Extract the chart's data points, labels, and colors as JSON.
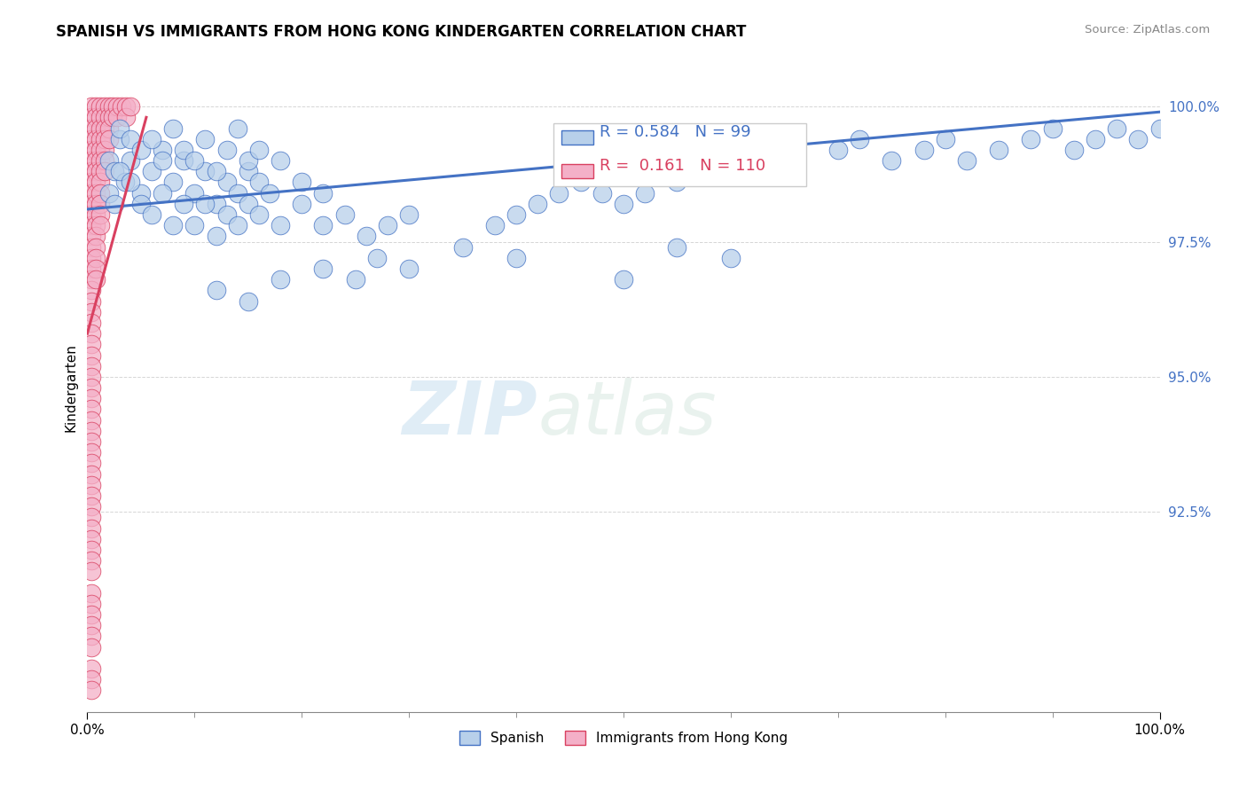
{
  "title": "SPANISH VS IMMIGRANTS FROM HONG KONG KINDERGARTEN CORRELATION CHART",
  "source_text": "Source: ZipAtlas.com",
  "ylabel": "Kindergarten",
  "x_min": 0.0,
  "x_max": 1.0,
  "y_min": 0.888,
  "y_max": 1.008,
  "x_tick_labels": [
    "0.0%",
    "100.0%"
  ],
  "x_ticks": [
    0.0,
    1.0
  ],
  "y_tick_labels": [
    "92.5%",
    "95.0%",
    "97.5%",
    "100.0%"
  ],
  "y_ticks": [
    0.925,
    0.95,
    0.975,
    1.0
  ],
  "legend_labels": [
    "Spanish",
    "Immigrants from Hong Kong"
  ],
  "blue_color": "#b8d0ea",
  "pink_color": "#f4b0c8",
  "blue_line_color": "#4472c4",
  "pink_line_color": "#d94060",
  "blue_R": 0.584,
  "blue_N": 99,
  "pink_R": 0.161,
  "pink_N": 110,
  "watermark_zip": "ZIP",
  "watermark_atlas": "atlas",
  "blue_trendline_x": [
    0.0,
    1.0
  ],
  "blue_trendline_y": [
    0.981,
    0.999
  ],
  "pink_trendline_x": [
    0.0,
    0.055
  ],
  "pink_trendline_y": [
    0.958,
    0.998
  ],
  "blue_scatter": [
    [
      0.02,
      0.99
    ],
    [
      0.025,
      0.988
    ],
    [
      0.03,
      0.994
    ],
    [
      0.035,
      0.986
    ],
    [
      0.04,
      0.99
    ],
    [
      0.05,
      0.984
    ],
    [
      0.06,
      0.988
    ],
    [
      0.07,
      0.992
    ],
    [
      0.08,
      0.986
    ],
    [
      0.09,
      0.99
    ],
    [
      0.1,
      0.984
    ],
    [
      0.11,
      0.988
    ],
    [
      0.12,
      0.982
    ],
    [
      0.13,
      0.986
    ],
    [
      0.14,
      0.984
    ],
    [
      0.15,
      0.988
    ],
    [
      0.16,
      0.986
    ],
    [
      0.17,
      0.984
    ],
    [
      0.18,
      0.99
    ],
    [
      0.2,
      0.986
    ],
    [
      0.22,
      0.984
    ],
    [
      0.03,
      0.996
    ],
    [
      0.04,
      0.994
    ],
    [
      0.05,
      0.992
    ],
    [
      0.06,
      0.994
    ],
    [
      0.07,
      0.99
    ],
    [
      0.08,
      0.996
    ],
    [
      0.09,
      0.992
    ],
    [
      0.1,
      0.99
    ],
    [
      0.11,
      0.994
    ],
    [
      0.12,
      0.988
    ],
    [
      0.13,
      0.992
    ],
    [
      0.14,
      0.996
    ],
    [
      0.15,
      0.99
    ],
    [
      0.16,
      0.992
    ],
    [
      0.02,
      0.984
    ],
    [
      0.025,
      0.982
    ],
    [
      0.03,
      0.988
    ],
    [
      0.04,
      0.986
    ],
    [
      0.05,
      0.982
    ],
    [
      0.06,
      0.98
    ],
    [
      0.07,
      0.984
    ],
    [
      0.08,
      0.978
    ],
    [
      0.09,
      0.982
    ],
    [
      0.1,
      0.978
    ],
    [
      0.11,
      0.982
    ],
    [
      0.12,
      0.976
    ],
    [
      0.13,
      0.98
    ],
    [
      0.14,
      0.978
    ],
    [
      0.15,
      0.982
    ],
    [
      0.16,
      0.98
    ],
    [
      0.18,
      0.978
    ],
    [
      0.2,
      0.982
    ],
    [
      0.22,
      0.978
    ],
    [
      0.24,
      0.98
    ],
    [
      0.26,
      0.976
    ],
    [
      0.28,
      0.978
    ],
    [
      0.3,
      0.98
    ],
    [
      0.38,
      0.978
    ],
    [
      0.4,
      0.98
    ],
    [
      0.42,
      0.982
    ],
    [
      0.44,
      0.984
    ],
    [
      0.46,
      0.986
    ],
    [
      0.48,
      0.984
    ],
    [
      0.5,
      0.982
    ],
    [
      0.52,
      0.984
    ],
    [
      0.55,
      0.986
    ],
    [
      0.6,
      0.988
    ],
    [
      0.65,
      0.99
    ],
    [
      0.7,
      0.992
    ],
    [
      0.72,
      0.994
    ],
    [
      0.75,
      0.99
    ],
    [
      0.78,
      0.992
    ],
    [
      0.8,
      0.994
    ],
    [
      0.82,
      0.99
    ],
    [
      0.85,
      0.992
    ],
    [
      0.88,
      0.994
    ],
    [
      0.9,
      0.996
    ],
    [
      0.92,
      0.992
    ],
    [
      0.94,
      0.994
    ],
    [
      0.96,
      0.996
    ],
    [
      0.98,
      0.994
    ],
    [
      1.0,
      0.996
    ],
    [
      0.55,
      0.974
    ],
    [
      0.6,
      0.972
    ],
    [
      0.27,
      0.972
    ],
    [
      0.3,
      0.97
    ],
    [
      0.12,
      0.966
    ],
    [
      0.15,
      0.964
    ],
    [
      0.18,
      0.968
    ],
    [
      0.22,
      0.97
    ],
    [
      0.25,
      0.968
    ],
    [
      0.35,
      0.974
    ],
    [
      0.4,
      0.972
    ],
    [
      0.5,
      0.968
    ]
  ],
  "pink_scatter": [
    [
      0.004,
      1.0
    ],
    [
      0.004,
      0.998
    ],
    [
      0.004,
      0.996
    ],
    [
      0.004,
      0.994
    ],
    [
      0.004,
      0.992
    ],
    [
      0.004,
      0.99
    ],
    [
      0.004,
      0.988
    ],
    [
      0.004,
      0.986
    ],
    [
      0.004,
      0.984
    ],
    [
      0.004,
      0.982
    ],
    [
      0.004,
      0.98
    ],
    [
      0.004,
      0.978
    ],
    [
      0.004,
      0.976
    ],
    [
      0.004,
      0.974
    ],
    [
      0.004,
      0.972
    ],
    [
      0.004,
      0.97
    ],
    [
      0.004,
      0.968
    ],
    [
      0.004,
      0.966
    ],
    [
      0.004,
      0.964
    ],
    [
      0.004,
      0.962
    ],
    [
      0.004,
      0.96
    ],
    [
      0.004,
      0.958
    ],
    [
      0.004,
      0.956
    ],
    [
      0.004,
      0.954
    ],
    [
      0.004,
      0.952
    ],
    [
      0.004,
      0.95
    ],
    [
      0.004,
      0.948
    ],
    [
      0.004,
      0.946
    ],
    [
      0.004,
      0.944
    ],
    [
      0.004,
      0.942
    ],
    [
      0.004,
      0.94
    ],
    [
      0.004,
      0.938
    ],
    [
      0.004,
      0.936
    ],
    [
      0.004,
      0.934
    ],
    [
      0.008,
      1.0
    ],
    [
      0.008,
      0.998
    ],
    [
      0.008,
      0.996
    ],
    [
      0.008,
      0.994
    ],
    [
      0.008,
      0.992
    ],
    [
      0.008,
      0.99
    ],
    [
      0.008,
      0.988
    ],
    [
      0.008,
      0.986
    ],
    [
      0.008,
      0.984
    ],
    [
      0.008,
      0.982
    ],
    [
      0.008,
      0.98
    ],
    [
      0.008,
      0.978
    ],
    [
      0.008,
      0.976
    ],
    [
      0.008,
      0.974
    ],
    [
      0.012,
      1.0
    ],
    [
      0.012,
      0.998
    ],
    [
      0.012,
      0.996
    ],
    [
      0.012,
      0.994
    ],
    [
      0.012,
      0.992
    ],
    [
      0.012,
      0.99
    ],
    [
      0.012,
      0.988
    ],
    [
      0.012,
      0.986
    ],
    [
      0.012,
      0.984
    ],
    [
      0.012,
      0.982
    ],
    [
      0.016,
      1.0
    ],
    [
      0.016,
      0.998
    ],
    [
      0.016,
      0.996
    ],
    [
      0.016,
      0.994
    ],
    [
      0.016,
      0.992
    ],
    [
      0.016,
      0.99
    ],
    [
      0.02,
      1.0
    ],
    [
      0.02,
      0.998
    ],
    [
      0.02,
      0.996
    ],
    [
      0.02,
      0.994
    ],
    [
      0.024,
      1.0
    ],
    [
      0.024,
      0.998
    ],
    [
      0.028,
      1.0
    ],
    [
      0.028,
      0.998
    ],
    [
      0.032,
      1.0
    ],
    [
      0.036,
      1.0
    ],
    [
      0.036,
      0.998
    ],
    [
      0.04,
      1.0
    ],
    [
      0.004,
      0.932
    ],
    [
      0.004,
      0.93
    ],
    [
      0.004,
      0.928
    ],
    [
      0.004,
      0.926
    ],
    [
      0.004,
      0.924
    ],
    [
      0.004,
      0.922
    ],
    [
      0.004,
      0.92
    ],
    [
      0.004,
      0.918
    ],
    [
      0.004,
      0.916
    ],
    [
      0.004,
      0.914
    ],
    [
      0.004,
      0.91
    ],
    [
      0.004,
      0.908
    ],
    [
      0.004,
      0.906
    ],
    [
      0.004,
      0.904
    ],
    [
      0.004,
      0.902
    ],
    [
      0.004,
      0.9
    ],
    [
      0.008,
      0.972
    ],
    [
      0.008,
      0.97
    ],
    [
      0.008,
      0.968
    ],
    [
      0.012,
      0.98
    ],
    [
      0.012,
      0.978
    ],
    [
      0.016,
      0.988
    ],
    [
      0.004,
      0.896
    ],
    [
      0.004,
      0.894
    ],
    [
      0.004,
      0.892
    ]
  ]
}
